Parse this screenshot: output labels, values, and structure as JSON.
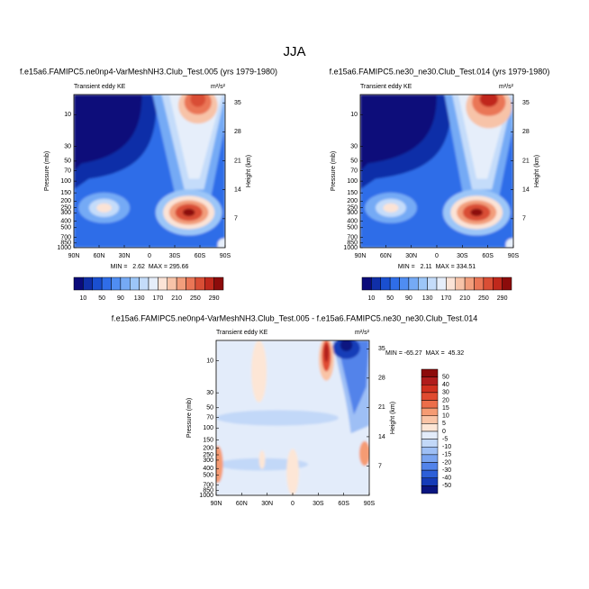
{
  "title": "JJA",
  "panels": [
    {
      "title": "f.e15a6.FAMIPC5.ne0np4-VarMeshNH3.Club_Test.005 (yrs 1979-1980)",
      "left_label": "Transient eddy KE",
      "right_label": "m²/s²",
      "ylabel": "Pressure (mb)",
      "y2label": "Height (km)",
      "stats": "MIN =   2.62  MAX = 295.66",
      "colorbar": 0
    },
    {
      "title": "f.e15a6.FAMIPC5.ne30_ne30.Club_Test.014 (yrs 1979-1980)",
      "left_label": "Transient eddy KE",
      "right_label": "m²/s²",
      "ylabel": "Pressure (mb)",
      "y2label": "Height (km)",
      "stats": "MIN =   2.11  MAX = 334.51",
      "colorbar": 0
    },
    {
      "title": "f.e15a6.FAMIPC5.ne0np4-VarMeshNH3.Club_Test.005 - f.e15a6.FAMIPC5.ne30_ne30.Club_Test.014",
      "left_label": "Transient eddy KE",
      "right_label": "m²/s²",
      "ylabel": "Pressure (mb)",
      "y2label": "Height (km)",
      "stats": "MIN = -65.27  MAX =  45.32",
      "colorbar": 1
    }
  ],
  "axes": {
    "xlim": [
      90,
      -90
    ],
    "xticks": [
      {
        "value": 90,
        "label": "90N"
      },
      {
        "value": 60,
        "label": "60N"
      },
      {
        "value": 30,
        "label": "30N"
      },
      0,
      {
        "value": -30,
        "label": "30S"
      },
      {
        "value": -60,
        "label": "60S"
      },
      {
        "value": -90,
        "label": "90S"
      }
    ],
    "ylim": [
      1000,
      5
    ],
    "log_y": true,
    "yticks": [
      10,
      30,
      50,
      70,
      100,
      150,
      200,
      250,
      300,
      400,
      500,
      700,
      850,
      1000
    ],
    "y2lim": [
      0,
      37
    ],
    "y2ticks": [
      7,
      14,
      21,
      28,
      35
    ]
  },
  "colorbars": [
    {
      "labels": [
        10,
        50,
        90,
        130,
        170,
        210,
        250,
        290
      ],
      "colors": [
        "#0b0b7a",
        "#102fa8",
        "#1a4fd0",
        "#2f6de8",
        "#4f8df2",
        "#75aaf5",
        "#9cc6f8",
        "#c4dcfa",
        "#e6eefa",
        "#fbe3d6",
        "#f7c3a8",
        "#f29e7c",
        "#ea7656",
        "#d94e35",
        "#c0281c",
        "#8c0b0b"
      ]
    },
    {
      "labels": [
        50,
        40,
        30,
        20,
        15,
        10,
        5,
        0,
        -5,
        -10,
        -15,
        -20,
        -30,
        -40,
        -50
      ],
      "colors": [
        "#8c0b0b",
        "#b01c1c",
        "#d0301f",
        "#e04b30",
        "#ec6e4a",
        "#f59b73",
        "#f9c4a6",
        "#fde6d6",
        "#e3ecfa",
        "#c2d8f8",
        "#9ebff5",
        "#7aa4f0",
        "#5283ea",
        "#2c5fd8",
        "#153cb8",
        "#0a1580"
      ]
    }
  ]
}
